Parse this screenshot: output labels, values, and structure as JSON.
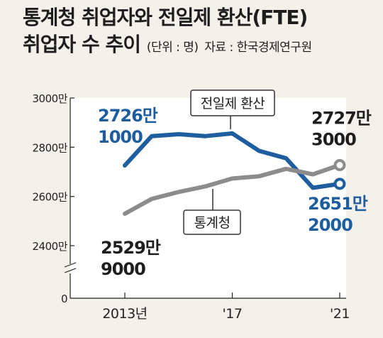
{
  "header": {
    "title_line1": "통계청 취업자와 전일제 환산(FTE)",
    "title_line2": "취업자 수 추이",
    "unit_note": "(단위 : 명)",
    "source_note": "자료 : 한국경제연구원"
  },
  "chart_data": {
    "type": "line",
    "title": "통계청 취업자와 전일제 환산(FTE) 취업자 수 추이",
    "unit": "명",
    "source": "한국경제연구원",
    "x": [
      2013,
      2014,
      2015,
      2016,
      2017,
      2018,
      2019,
      2020,
      2021
    ],
    "x_tick_labels": [
      {
        "x": 2013,
        "label": "2013년"
      },
      {
        "x": 2017,
        "label": "'17"
      },
      {
        "x": 2021,
        "label": "'21"
      }
    ],
    "y_tick_labels": [
      {
        "value": 30000000,
        "label": "3000만"
      },
      {
        "value": 28000000,
        "label": "2800만"
      },
      {
        "value": 26000000,
        "label": "2600만"
      },
      {
        "value": 24000000,
        "label": "2400만"
      },
      {
        "value": 0,
        "label": "0"
      }
    ],
    "y_axis_break": true,
    "ylim": [
      23000000,
      30000000
    ],
    "series": [
      {
        "name": "전일제 환산",
        "color": "#1f5e9e",
        "values": [
          27261000,
          28450000,
          28530000,
          28450000,
          28560000,
          27850000,
          27550000,
          26350000,
          26512000
        ],
        "labels": [
          {
            "x": 2013,
            "line1": "2726만",
            "line2": "1000"
          },
          {
            "x": 2021,
            "line1": "2651만",
            "line2": "2000"
          }
        ]
      },
      {
        "name": "통계청",
        "color": "#8c8c8c",
        "values": [
          25299000,
          25900000,
          26180000,
          26410000,
          26730000,
          26820000,
          27120000,
          26900000,
          27273000
        ],
        "labels": [
          {
            "x": 2013,
            "line1": "2529만",
            "line2": "9000"
          },
          {
            "x": 2021,
            "line1": "2727만",
            "line2": "3000"
          }
        ]
      }
    ],
    "grid": false,
    "legend": "callout boxes on lines"
  }
}
